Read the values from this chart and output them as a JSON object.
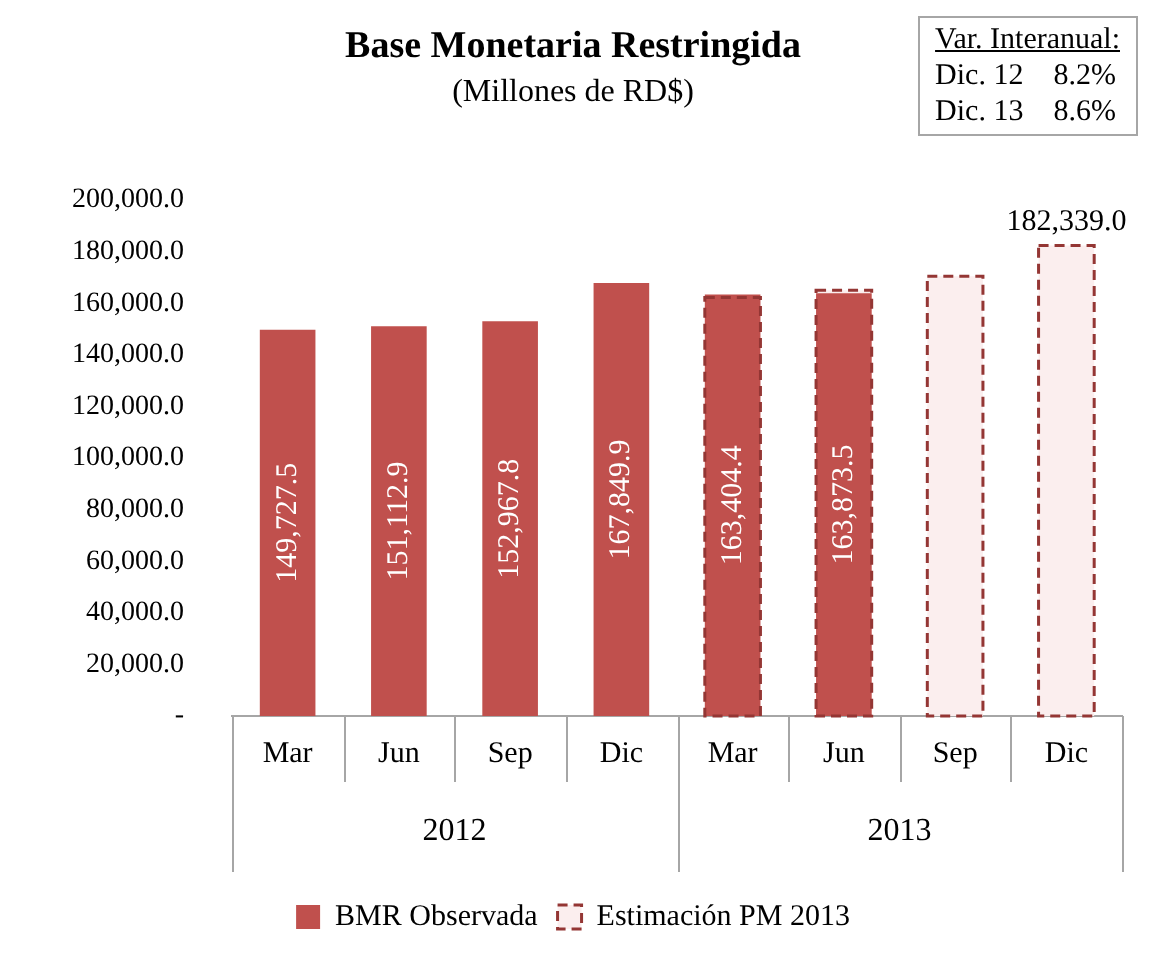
{
  "chart_data": {
    "type": "bar",
    "title": "Base Monetaria Restringida",
    "subtitle": "(Millones de RD$)",
    "categories": [
      "Mar",
      "Jun",
      "Sep",
      "Dic",
      "Mar",
      "Jun",
      "Sep",
      "Dic"
    ],
    "series": [
      {
        "name": "BMR Observada",
        "color": "#c0504d",
        "values": [
          149727.5,
          151112.9,
          152967.8,
          167849.9,
          163404.4,
          163873.5,
          null,
          null
        ],
        "value_labels": [
          "149,727.5",
          "151,112.9",
          "152,967.8",
          "167,849.9",
          "163,404.4",
          "163,873.5",
          null,
          null
        ]
      },
      {
        "name": "Estimación PM 2013",
        "color": "#943634",
        "line_style": "dashed",
        "values": [
          null,
          null,
          null,
          null,
          162200,
          165000,
          170400,
          182339.0
        ],
        "value_labels": [
          null,
          null,
          null,
          null,
          null,
          null,
          null,
          "182,339.0"
        ]
      }
    ],
    "ylim": [
      0,
      200000
    ],
    "yticks": [
      {
        "value": 0,
        "label": "-"
      },
      {
        "value": 20000,
        "label": "20,000.0"
      },
      {
        "value": 40000,
        "label": "40,000.0"
      },
      {
        "value": 60000,
        "label": "60,000.0"
      },
      {
        "value": 80000,
        "label": "80,000.0"
      },
      {
        "value": 100000,
        "label": "100,000.0"
      },
      {
        "value": 120000,
        "label": "120,000.0"
      },
      {
        "value": 140000,
        "label": "140,000.0"
      },
      {
        "value": 160000,
        "label": "160,000.0"
      },
      {
        "value": 180000,
        "label": "180,000.0"
      },
      {
        "value": 200000,
        "label": "200,000.0"
      }
    ],
    "grid": false,
    "legend": "bottom",
    "annotations": [
      "2012",
      "2013",
      "Var. Interanual:",
      "Dic. 12    8.2%",
      "Dic. 13    8.6%"
    ]
  }
}
